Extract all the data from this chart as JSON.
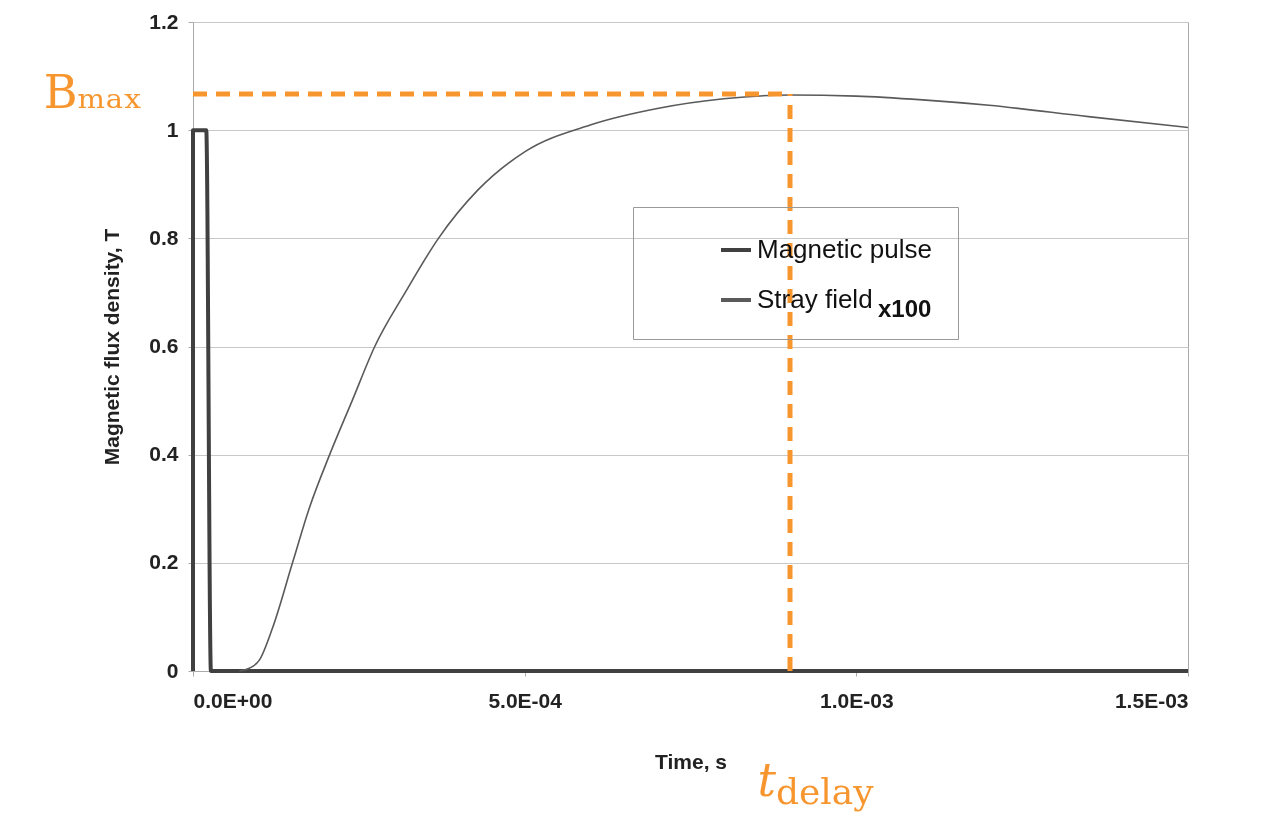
{
  "chart_data": {
    "type": "line",
    "xlabel": "Time, s",
    "ylabel": "Magnetic flux density, T",
    "xlim": [
      0,
      0.0015
    ],
    "ylim": [
      0,
      1.2
    ],
    "xticks": [
      {
        "value": 0,
        "label": "0.0E+00"
      },
      {
        "value": 0.0005,
        "label": "5.0E-04"
      },
      {
        "value": 0.001,
        "label": "1.0E-03"
      },
      {
        "value": 0.0015,
        "label": "1.5E-03"
      }
    ],
    "yticks": [
      0,
      0.2,
      0.4,
      0.6,
      0.8,
      1,
      1.2
    ],
    "grid": "y",
    "legend": "top right",
    "line_style": "solid",
    "marker": "none",
    "series": [
      {
        "name": "Magnetic pulse",
        "color": "#404040",
        "x": [
          0,
          0,
          2e-05,
          2.7e-05,
          0.0015
        ],
        "values": [
          0,
          1,
          1,
          0,
          0
        ]
      },
      {
        "name": "Stray field",
        "color": "#5a5a5a",
        "x": [
          7e-05,
          8.5e-05,
          0.0001,
          0.00012,
          0.00015,
          0.000175,
          0.000206,
          0.00024,
          0.000274,
          0.00032,
          0.00037,
          0.00043,
          0.0005,
          0.0006,
          0.0007,
          0.0008,
          0.0009,
          0.001,
          0.0011,
          0.0012,
          0.00135,
          0.0015
        ],
        "values": [
          0,
          0.005,
          0.02,
          0.08,
          0.2,
          0.3,
          0.4,
          0.5,
          0.6,
          0.7,
          0.8,
          0.89,
          0.96,
          1.01,
          1.04,
          1.058,
          1.065,
          1.063,
          1.056,
          1.046,
          1.025,
          1.005
        ]
      }
    ],
    "ref_lines": [
      {
        "axis": "y",
        "value": 1.067,
        "label": "Bₘₐₓ",
        "color": "#f7962f",
        "line_style": "dashed"
      },
      {
        "axis": "x",
        "value": 0.0009,
        "label": "t$_{delay}$",
        "color": "#f7962f",
        "line_style": "dashed"
      }
    ],
    "annotations": [
      "x100"
    ]
  }
}
